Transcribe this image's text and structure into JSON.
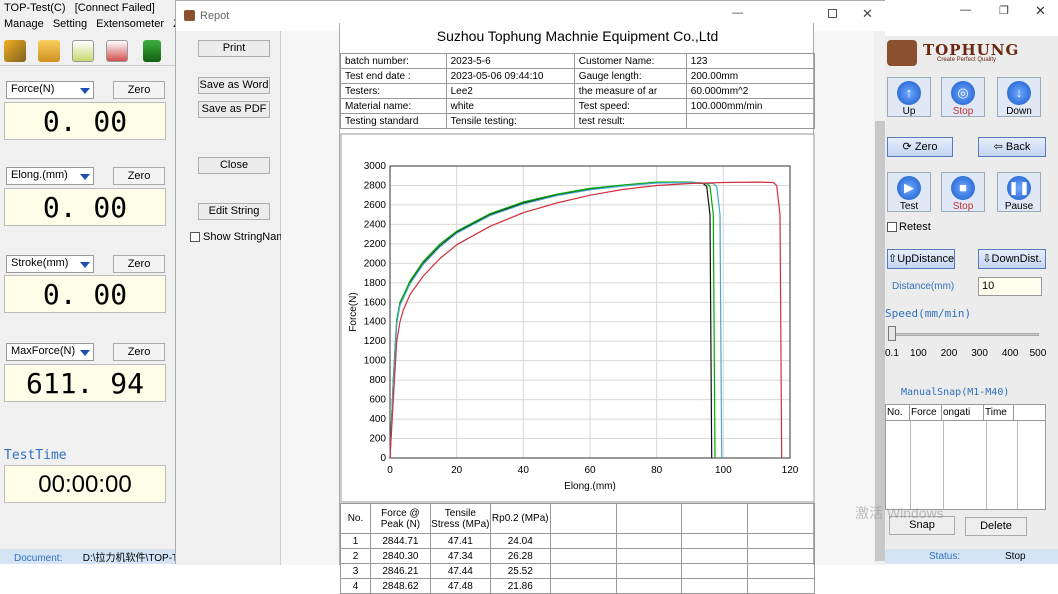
{
  "app": {
    "title": "TOP-Test(C)",
    "conn_status": "[Connect Failed]",
    "menu": [
      "Manage",
      "Setting",
      "Extensometer",
      "Z"
    ]
  },
  "gauges": [
    {
      "label": "Force(N)",
      "value": "0. 00",
      "zero": "Zero"
    },
    {
      "label": "Elong.(mm)",
      "value": "0. 00",
      "zero": "Zero"
    },
    {
      "label": "Stroke(mm)",
      "value": "0. 00",
      "zero": "Zero"
    },
    {
      "label": "MaxForce(N)",
      "value": "611. 94",
      "zero": "Zero"
    }
  ],
  "test_time": {
    "label": "TestTime",
    "value": "00:00:00"
  },
  "status_left": {
    "label": "Document:",
    "path": "D:\\拉力机软件\\TOP-T"
  },
  "report": {
    "title": "Repot",
    "buttons": {
      "print": "Print",
      "save_word": "Save as Word",
      "save_pdf": "Save as PDF",
      "close": "Close",
      "edit_string": "Edit String"
    },
    "show_string_names": "Show StringNames",
    "company": "Suzhou Tophung Machnie Equipment Co.,Ltd",
    "info": [
      [
        "batch number:",
        "2023-5-6",
        "Customer Name:",
        "123"
      ],
      [
        "Test end date :",
        "2023-05-06 09:44:10",
        "Gauge length:",
        "200.00mm"
      ],
      [
        "Testers:",
        "Lee2",
        "the measure of ar",
        "60.000mm^2"
      ],
      [
        "Material name:",
        "white",
        "Test speed:",
        "100.000mm/min"
      ],
      [
        "Testing standard",
        "Tensile testing:",
        "test result:",
        ""
      ]
    ],
    "results": {
      "headers": [
        "No.",
        "Force @ Peak (N)",
        "Tensile Stress (MPa)",
        "Rp0.2 (MPa)"
      ],
      "rows": [
        [
          "1",
          "2844.71",
          "47.41",
          "24.04"
        ],
        [
          "2",
          "2840.30",
          "47.34",
          "26.28"
        ],
        [
          "3",
          "2846.21",
          "47.44",
          "25.52"
        ],
        [
          "4",
          "2848.62",
          "47.48",
          "21.86"
        ]
      ]
    }
  },
  "chart_data": {
    "type": "line",
    "xlabel": "Elong.(mm)",
    "ylabel": "Force(N)",
    "xlim": [
      0,
      120
    ],
    "ylim": [
      0,
      3000
    ],
    "xticks": [
      0,
      20,
      40,
      60,
      80,
      100,
      120
    ],
    "yticks": [
      0,
      200,
      400,
      600,
      800,
      1000,
      1200,
      1400,
      1600,
      1800,
      2000,
      2200,
      2400,
      2600,
      2800,
      3000
    ],
    "grid": true,
    "series": [
      {
        "color": "#111111",
        "x": [
          0,
          1,
          2,
          3,
          4,
          6,
          10,
          15,
          20,
          30,
          40,
          50,
          60,
          70,
          80,
          90,
          94,
          95,
          96,
          96.5
        ],
        "y": [
          0,
          800,
          1400,
          1580,
          1650,
          1800,
          2000,
          2180,
          2320,
          2500,
          2620,
          2700,
          2760,
          2800,
          2830,
          2835,
          2820,
          2790,
          2500,
          0
        ]
      },
      {
        "color": "#00aa00",
        "x": [
          0,
          1,
          2,
          3,
          4,
          6,
          10,
          15,
          20,
          30,
          40,
          50,
          60,
          70,
          80,
          90,
          95,
          96,
          97,
          97.5
        ],
        "y": [
          0,
          800,
          1420,
          1600,
          1670,
          1820,
          2020,
          2200,
          2330,
          2510,
          2630,
          2710,
          2770,
          2805,
          2835,
          2835,
          2820,
          2790,
          2500,
          0
        ]
      },
      {
        "color": "#4aa8c8",
        "x": [
          0,
          1,
          2,
          3,
          4,
          6,
          10,
          15,
          20,
          30,
          40,
          50,
          60,
          70,
          80,
          90,
          97,
          98,
          99,
          99.5
        ],
        "y": [
          0,
          780,
          1380,
          1570,
          1640,
          1790,
          1990,
          2170,
          2310,
          2490,
          2610,
          2695,
          2755,
          2795,
          2825,
          2830,
          2820,
          2790,
          2500,
          0
        ]
      },
      {
        "color": "#d0303c",
        "x": [
          0,
          1,
          2,
          3,
          4,
          6,
          10,
          15,
          20,
          30,
          40,
          50,
          60,
          70,
          80,
          90,
          100,
          110,
          115,
          116,
          117,
          117.5
        ],
        "y": [
          0,
          600,
          1200,
          1400,
          1520,
          1680,
          1870,
          2050,
          2190,
          2380,
          2520,
          2620,
          2700,
          2760,
          2800,
          2820,
          2830,
          2835,
          2830,
          2800,
          2500,
          0
        ]
      }
    ]
  },
  "right_panel": {
    "brand": "TOPHUNG",
    "tagline": "Create Perfect Quality",
    "up": "Up",
    "stop": "Stop",
    "down": "Down",
    "zero": "Zero",
    "back": "Back",
    "test": "Test",
    "stop2": "Stop",
    "pause": "Pause",
    "retest": "Retest",
    "updistance": "UpDistance",
    "downdist": "DownDist.",
    "distance_label": "Distance(mm)",
    "distance_value": "10",
    "speed_label": "Speed(mm/min)",
    "speed_ticks": [
      "0.1",
      "100",
      "200",
      "300",
      "400",
      "500"
    ],
    "snap_label": "ManualSnap(M1-M40)",
    "snap_headers": [
      "No.",
      "Force",
      "ongati",
      "Time"
    ],
    "snap": "Snap",
    "delete": "Delete",
    "status_label": "Status:",
    "status_value": "Stop",
    "watermark": "激活 Windows"
  },
  "colors": {
    "accent": "#1e4fb0",
    "gauge_bg": "#fdfde8",
    "status_bg": "#d4e4f4"
  }
}
